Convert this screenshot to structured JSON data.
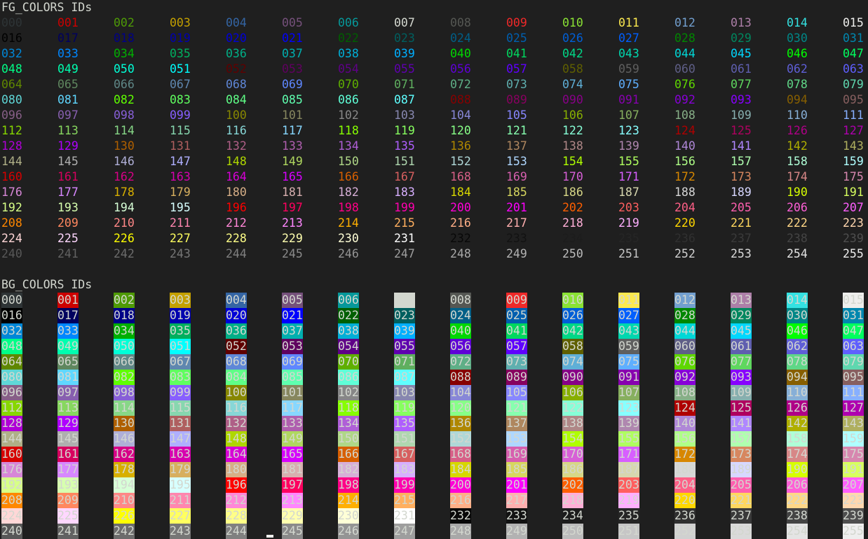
{
  "terminal": {
    "background": "#1f1f1f",
    "foreground": "#d3d7cf",
    "cursor_color": "#eeeeec"
  },
  "fg_section": {
    "title": "FG_COLORS IDs"
  },
  "bg_section": {
    "title": "BG_COLORS IDs"
  },
  "grid": {
    "columns": 16,
    "rows": 16
  },
  "ids": [
    "000",
    "001",
    "002",
    "003",
    "004",
    "005",
    "006",
    "007",
    "008",
    "009",
    "010",
    "011",
    "012",
    "013",
    "014",
    "015",
    "016",
    "017",
    "018",
    "019",
    "020",
    "021",
    "022",
    "023",
    "024",
    "025",
    "026",
    "027",
    "028",
    "029",
    "030",
    "031",
    "032",
    "033",
    "034",
    "035",
    "036",
    "037",
    "038",
    "039",
    "040",
    "041",
    "042",
    "043",
    "044",
    "045",
    "046",
    "047",
    "048",
    "049",
    "050",
    "051",
    "052",
    "053",
    "054",
    "055",
    "056",
    "057",
    "058",
    "059",
    "060",
    "061",
    "062",
    "063",
    "064",
    "065",
    "066",
    "067",
    "068",
    "069",
    "070",
    "071",
    "072",
    "073",
    "074",
    "075",
    "076",
    "077",
    "078",
    "079",
    "080",
    "081",
    "082",
    "083",
    "084",
    "085",
    "086",
    "087",
    "088",
    "089",
    "090",
    "091",
    "092",
    "093",
    "094",
    "095",
    "096",
    "097",
    "098",
    "099",
    "100",
    "101",
    "102",
    "103",
    "104",
    "105",
    "106",
    "107",
    "108",
    "109",
    "110",
    "111",
    "112",
    "113",
    "114",
    "115",
    "116",
    "117",
    "118",
    "119",
    "120",
    "121",
    "122",
    "123",
    "124",
    "125",
    "126",
    "127",
    "128",
    "129",
    "130",
    "131",
    "132",
    "133",
    "134",
    "135",
    "136",
    "137",
    "138",
    "139",
    "140",
    "141",
    "142",
    "143",
    "144",
    "145",
    "146",
    "147",
    "148",
    "149",
    "150",
    "151",
    "152",
    "153",
    "154",
    "155",
    "156",
    "157",
    "158",
    "159",
    "160",
    "161",
    "162",
    "163",
    "164",
    "165",
    "166",
    "167",
    "168",
    "169",
    "170",
    "171",
    "172",
    "173",
    "174",
    "175",
    "176",
    "177",
    "178",
    "179",
    "180",
    "181",
    "182",
    "183",
    "184",
    "185",
    "186",
    "187",
    "188",
    "189",
    "190",
    "191",
    "192",
    "193",
    "194",
    "195",
    "196",
    "197",
    "198",
    "199",
    "200",
    "201",
    "202",
    "203",
    "204",
    "205",
    "206",
    "207",
    "208",
    "209",
    "210",
    "211",
    "212",
    "213",
    "214",
    "215",
    "216",
    "217",
    "218",
    "219",
    "220",
    "221",
    "222",
    "223",
    "224",
    "225",
    "226",
    "227",
    "228",
    "229",
    "230",
    "231",
    "232",
    "233",
    "234",
    "235",
    "236",
    "237",
    "238",
    "239",
    "240",
    "241",
    "242",
    "243",
    "244",
    "245",
    "246",
    "247",
    "248",
    "249",
    "250",
    "251",
    "252",
    "253",
    "254",
    "255"
  ],
  "palette": [
    "#2e3436",
    "#cc0000",
    "#4e9a06",
    "#c4a000",
    "#3465a4",
    "#75507b",
    "#06989a",
    "#d3d7cf",
    "#555753",
    "#ef2929",
    "#8ae234",
    "#fce94f",
    "#729fcf",
    "#ad7fa8",
    "#34e2e2",
    "#eeeeec",
    "#000000",
    "#00005f",
    "#000087",
    "#0000af",
    "#0000d7",
    "#0000ff",
    "#005f00",
    "#005f5f",
    "#005f87",
    "#005faf",
    "#005fd7",
    "#005fff",
    "#008700",
    "#00875f",
    "#008787",
    "#0087af",
    "#0087d7",
    "#0087ff",
    "#00af00",
    "#00af5f",
    "#00af87",
    "#00afaf",
    "#00afd7",
    "#00afff",
    "#00d700",
    "#00d75f",
    "#00d787",
    "#00d7af",
    "#00d7d7",
    "#00d7ff",
    "#00ff00",
    "#00ff5f",
    "#00ff87",
    "#00ffaf",
    "#00ffd7",
    "#00ffff",
    "#5f0000",
    "#5f005f",
    "#5f0087",
    "#5f00af",
    "#5f00d7",
    "#5f00ff",
    "#5f5f00",
    "#5f5f5f",
    "#5f5f87",
    "#5f5faf",
    "#5f5fd7",
    "#5f5fff",
    "#5f8700",
    "#5f875f",
    "#5f8787",
    "#5f87af",
    "#5f87d7",
    "#5f87ff",
    "#5faf00",
    "#5faf5f",
    "#5faf87",
    "#5fafaf",
    "#5fafd7",
    "#5fafff",
    "#5fd700",
    "#5fd75f",
    "#5fd787",
    "#5fd7af",
    "#5fd7d7",
    "#5fd7ff",
    "#5fff00",
    "#5fff5f",
    "#5fff87",
    "#5fffaf",
    "#5fffd7",
    "#5fffff",
    "#870000",
    "#87005f",
    "#870087",
    "#8700af",
    "#8700d7",
    "#8700ff",
    "#875f00",
    "#875f5f",
    "#875f87",
    "#875faf",
    "#875fd7",
    "#875fff",
    "#878700",
    "#87875f",
    "#878787",
    "#8787af",
    "#8787d7",
    "#8787ff",
    "#87af00",
    "#87af5f",
    "#87af87",
    "#87afaf",
    "#87afd7",
    "#87afff",
    "#87d700",
    "#87d75f",
    "#87d787",
    "#87d7af",
    "#87d7d7",
    "#87d7ff",
    "#87ff00",
    "#87ff5f",
    "#87ff87",
    "#87ffaf",
    "#87ffd7",
    "#87ffff",
    "#af0000",
    "#af005f",
    "#af0087",
    "#af00af",
    "#af00d7",
    "#af00ff",
    "#af5f00",
    "#af5f5f",
    "#af5f87",
    "#af5faf",
    "#af5fd7",
    "#af5fff",
    "#af8700",
    "#af875f",
    "#af8787",
    "#af87af",
    "#af87d7",
    "#af87ff",
    "#afaf00",
    "#afaf5f",
    "#afaf87",
    "#afafaf",
    "#afafd7",
    "#afafff",
    "#afd700",
    "#afd75f",
    "#afd787",
    "#afd7af",
    "#afd7d7",
    "#afd7ff",
    "#afff00",
    "#afff5f",
    "#afff87",
    "#afffaf",
    "#afffd7",
    "#afffff",
    "#d70000",
    "#d7005f",
    "#d70087",
    "#d700af",
    "#d700d7",
    "#d700ff",
    "#d75f00",
    "#d75f5f",
    "#d75f87",
    "#d75faf",
    "#d75fd7",
    "#d75fff",
    "#d78700",
    "#d7875f",
    "#d78787",
    "#d787af",
    "#d787d7",
    "#d787ff",
    "#d7af00",
    "#d7af5f",
    "#d7af87",
    "#d7afaf",
    "#d7afd7",
    "#d7afff",
    "#d7d700",
    "#d7d75f",
    "#d7d787",
    "#d7d7af",
    "#d7d7d7",
    "#d7d7ff",
    "#d7ff00",
    "#d7ff5f",
    "#d7ff87",
    "#d7ffaf",
    "#d7ffd7",
    "#d7ffff",
    "#ff0000",
    "#ff005f",
    "#ff0087",
    "#ff00af",
    "#ff00d7",
    "#ff00ff",
    "#ff5f00",
    "#ff5f5f",
    "#ff5f87",
    "#ff5faf",
    "#ff5fd7",
    "#ff5fff",
    "#ff8700",
    "#ff875f",
    "#ff8787",
    "#ff87af",
    "#ff87d7",
    "#ff87ff",
    "#ffaf00",
    "#ffaf5f",
    "#ffaf87",
    "#ffafaf",
    "#ffafd7",
    "#ffafff",
    "#ffd700",
    "#ffd75f",
    "#ffd787",
    "#ffd7af",
    "#ffd7d7",
    "#ffd7ff",
    "#ffff00",
    "#ffff5f",
    "#ffff87",
    "#ffffaf",
    "#ffffd7",
    "#ffffff",
    "#080808",
    "#121212",
    "#1c1c1c",
    "#262626",
    "#303030",
    "#3a3a3a",
    "#444444",
    "#4e4e4e",
    "#585858",
    "#626262",
    "#6c6c6c",
    "#767676",
    "#808080",
    "#8a8a8a",
    "#949494",
    "#9e9e9e",
    "#a8a8a8",
    "#b2b2b2",
    "#bcbcbc",
    "#c6c6c6",
    "#d0d0d0",
    "#dadada",
    "#e4e4e4",
    "#eeeeee"
  ]
}
